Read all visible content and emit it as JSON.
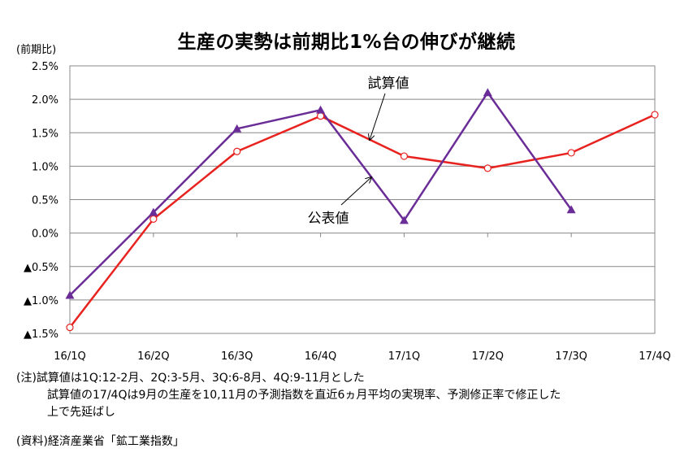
{
  "chart_data": {
    "type": "line",
    "title": "生産の実勢は前期比1%台の伸びが継続",
    "ylabel": "(前期比)",
    "categories": [
      "16/1Q",
      "16/2Q",
      "16/3Q",
      "16/4Q",
      "17/1Q",
      "17/2Q",
      "17/3Q",
      "17/4Q"
    ],
    "ylim": [
      -1.5,
      2.5
    ],
    "yticks": [
      {
        "value": 2.5,
        "label": "2.5%"
      },
      {
        "value": 2.0,
        "label": "2.0%"
      },
      {
        "value": 1.5,
        "label": "1.5%"
      },
      {
        "value": 1.0,
        "label": "1.0%"
      },
      {
        "value": 0.5,
        "label": "0.5%"
      },
      {
        "value": 0.0,
        "label": "0.0%"
      },
      {
        "value": -0.5,
        "label": "▲0.5%"
      },
      {
        "value": -1.0,
        "label": "▲1.0%"
      },
      {
        "value": -1.5,
        "label": "▲1.5%"
      }
    ],
    "grid": true,
    "series": [
      {
        "name": "試算値",
        "color": "#e8221f",
        "marker": "circle",
        "values": [
          -1.41,
          0.21,
          1.22,
          1.75,
          1.15,
          0.97,
          1.2,
          1.77
        ]
      },
      {
        "name": "公表値",
        "color": "#6a2c97",
        "marker": "triangle",
        "values": [
          -0.93,
          0.31,
          1.56,
          1.84,
          0.19,
          2.1,
          0.35,
          null
        ]
      }
    ]
  },
  "notes": {
    "line1": "(注)試算値は1Q:12-2月、2Q:3-5月、3Q:6-8月、4Q:9-11月とした",
    "line2": "試算値の17/4Qは9月の生産を10,11月の予測指数を直近6ヵ月平均の実現率、予測修正率で修正した",
    "line3": "上で先延ばし"
  },
  "source": "(資料)経済産業省「鉱工業指数」"
}
